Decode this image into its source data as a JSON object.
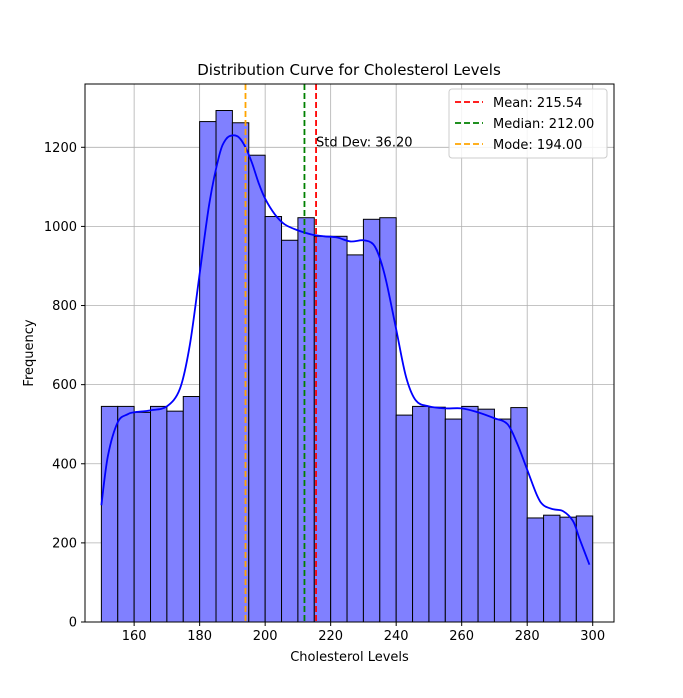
{
  "chart_data": {
    "type": "histogram",
    "title": "Distribution Curve for Cholesterol Levels",
    "xlabel": "Cholesterol Levels",
    "ylabel": "Frequency",
    "xlim": [
      145,
      306.5
    ],
    "ylim": [
      0,
      1360
    ],
    "xticks": [
      160,
      180,
      200,
      220,
      240,
      260,
      280,
      300
    ],
    "yticks": [
      0,
      200,
      400,
      600,
      800,
      1000,
      1200
    ],
    "grid": true,
    "legend_position": "top-right",
    "bin_edges": [
      150,
      155,
      160,
      165,
      170,
      175,
      180,
      185,
      190,
      195,
      200,
      205,
      210,
      215,
      220,
      225,
      230,
      235,
      240,
      245,
      250,
      255,
      260,
      265,
      270,
      275,
      280,
      285,
      290,
      295,
      300
    ],
    "counts": [
      545,
      545,
      530,
      545,
      533,
      570,
      1265,
      1293,
      1262,
      1180,
      1025,
      965,
      1022,
      975,
      975,
      928,
      1018,
      1022,
      523,
      545,
      543,
      513,
      545,
      538,
      513,
      542,
      263,
      270,
      265,
      268
    ],
    "bar_color": "#8080ff",
    "kde": {
      "color": "#0000ff",
      "x": [
        150,
        152,
        155,
        158,
        160,
        165,
        170,
        174,
        177,
        180,
        183,
        186,
        188,
        190,
        192,
        194,
        196,
        198,
        200,
        203,
        206,
        210,
        214,
        218,
        222,
        226,
        230,
        233,
        235,
        237,
        240,
        243,
        246,
        250,
        255,
        260,
        265,
        270,
        274,
        277,
        280,
        283,
        285,
        288,
        291,
        294,
        296,
        299
      ],
      "y": [
        295,
        420,
        505,
        525,
        530,
        535,
        545,
        590,
        700,
        880,
        1060,
        1180,
        1220,
        1230,
        1225,
        1200,
        1160,
        1110,
        1070,
        1030,
        1005,
        990,
        980,
        975,
        972,
        962,
        965,
        955,
        920,
        860,
        740,
        620,
        560,
        545,
        540,
        540,
        530,
        515,
        500,
        450,
        385,
        320,
        295,
        285,
        280,
        255,
        210,
        145
      ]
    },
    "lines": [
      {
        "label": "Mean: 215.54",
        "value": 215.54,
        "color": "#ff0000"
      },
      {
        "label": "Median: 212.00",
        "value": 212.0,
        "color": "#008000"
      },
      {
        "label": "Mode: 194.00",
        "value": 194.0,
        "color": "#ffa500"
      }
    ],
    "annotations": [
      {
        "text": "Std Dev: 36.20",
        "x": 215.54,
        "y": 1220,
        "color": "#800080"
      }
    ]
  }
}
